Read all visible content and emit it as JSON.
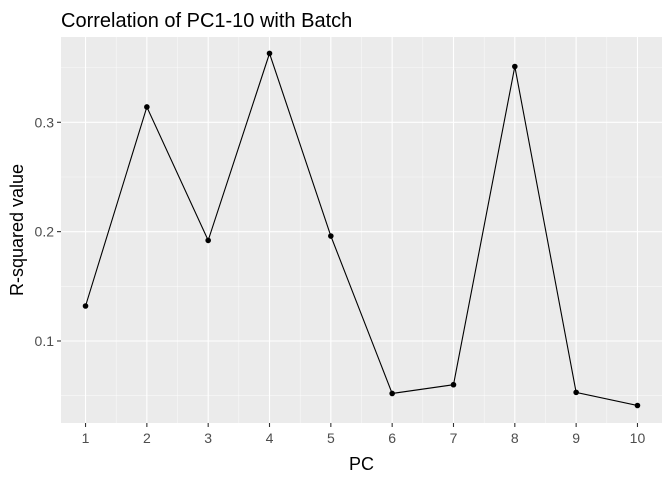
{
  "chart_data": {
    "type": "line",
    "title": "Correlation of PC1-10 with Batch",
    "xlabel": "PC",
    "ylabel": "R-squared value",
    "x": [
      1,
      2,
      3,
      4,
      5,
      6,
      7,
      8,
      9,
      10
    ],
    "x_ticks": [
      "1",
      "2",
      "3",
      "4",
      "5",
      "6",
      "7",
      "8",
      "9",
      "10"
    ],
    "y": [
      0.132,
      0.314,
      0.192,
      0.363,
      0.196,
      0.052,
      0.06,
      0.351,
      0.053,
      0.041
    ],
    "y_ticks": [
      "0.1",
      "0.2",
      "0.3"
    ],
    "xlim": [
      0.6,
      10.4
    ],
    "ylim": [
      0.025,
      0.378
    ],
    "grid": true,
    "colors": {
      "panel_background": "#EBEBEB",
      "grid_major": "#FFFFFF",
      "line": "#000000",
      "point": "#000000",
      "axis_text": "#4D4D4D",
      "title_text": "#000000"
    }
  }
}
